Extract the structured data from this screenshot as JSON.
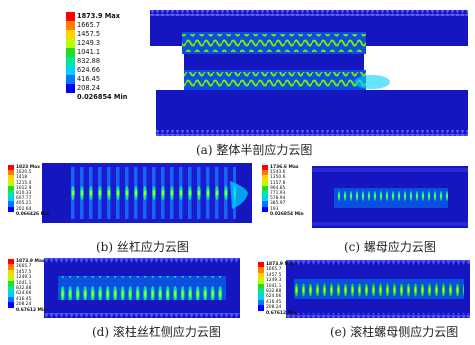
{
  "palette": [
    "#ff0000",
    "#ff8000",
    "#ffd400",
    "#b8ff00",
    "#22dd22",
    "#00e8a0",
    "#00d0ff",
    "#0078ff",
    "#0000ff"
  ],
  "model_blue": "#1616c0",
  "panels": {
    "a": {
      "caption": "(a)  整体半剖应力云图",
      "legend": [
        "1873.9 Max",
        "1665.7",
        "1457.5",
        "1249.3",
        "1041.1",
        "832.88",
        "624.66",
        "416.45",
        "208.24",
        "0.026854 Min"
      ]
    },
    "b": {
      "caption": "(b)  丝杠应力云图",
      "legend": [
        "1823 Max",
        "1620.5",
        "1418",
        "1215.4",
        "1012.9",
        "810.33",
        "607.77",
        "405.21",
        "202.64",
        "0.066426 Min"
      ]
    },
    "c": {
      "caption": "(c)  螺母应力云图",
      "legend": [
        "1736.6 Max",
        "1543.6",
        "1350.6",
        "1157.8",
        "964.85",
        "771.93",
        "578.94",
        "385.97",
        "193",
        "0.026854 Min"
      ]
    },
    "d": {
      "caption": "(d)  滚柱丝杠侧应力云图",
      "legend": [
        "1873.9 Max",
        "1665.7",
        "1457.5",
        "1249.3",
        "1041.1",
        "832.88",
        "624.66",
        "416.45",
        "208.24",
        "0.67612 Min"
      ]
    },
    "e": {
      "caption": "(e)  滚柱螺母侧应力云图",
      "legend": [
        "1873.9 Max",
        "1665.7",
        "1457.5",
        "1249.3",
        "1041.1",
        "832.88",
        "624.66",
        "416.45",
        "208.24",
        "0.67612 Min"
      ]
    }
  }
}
